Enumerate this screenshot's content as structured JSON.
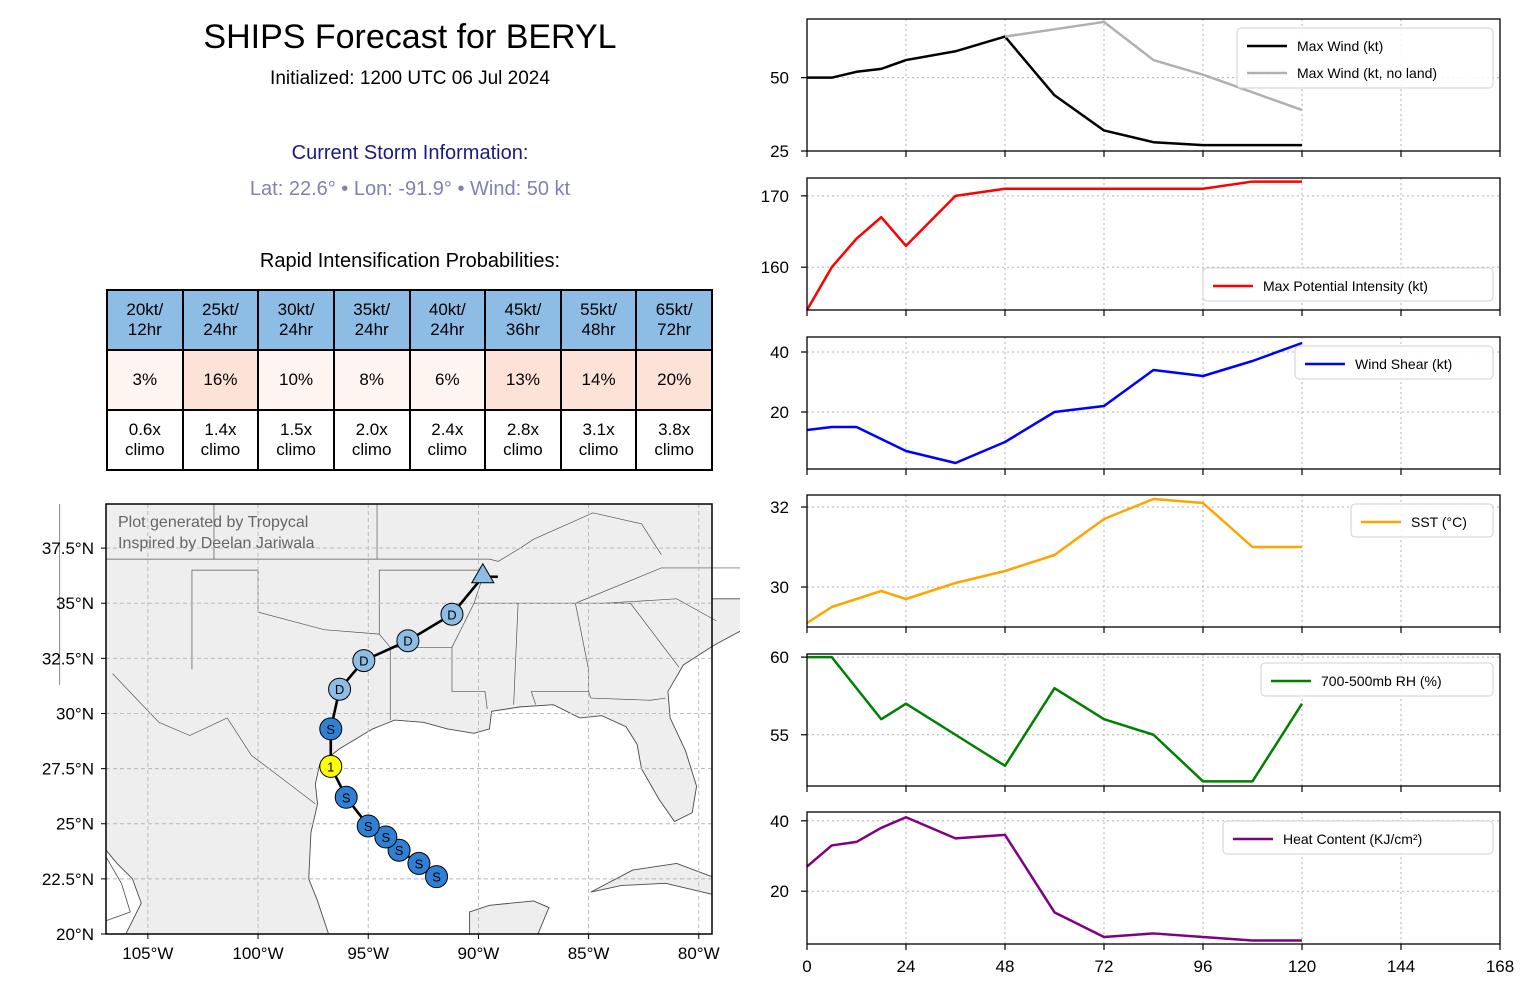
{
  "header": {
    "title": "SHIPS Forecast for BERYL",
    "initialized": "Initialized: 1200 UTC 06 Jul 2024",
    "storm_info_heading": "Current Storm Information:",
    "storm_info_line": "Lat: 22.6°  • Lon: -91.9°  • Wind: 50 kt",
    "ri_heading": "Rapid Intensification Probabilities:"
  },
  "ri_table": {
    "headers": [
      "20kt/\n12hr",
      "25kt/\n24hr",
      "30kt/\n24hr",
      "35kt/\n24hr",
      "40kt/\n24hr",
      "45kt/\n36hr",
      "55kt/\n48hr",
      "65kt/\n72hr"
    ],
    "probabilities": [
      "3%",
      "16%",
      "10%",
      "8%",
      "6%",
      "13%",
      "14%",
      "20%"
    ],
    "climo": [
      "0.6x\nclimo",
      "1.4x\nclimo",
      "1.5x\nclimo",
      "2.0x\nclimo",
      "2.4x\nclimo",
      "2.8x\nclimo",
      "3.1x\nclimo",
      "3.8x\nclimo"
    ],
    "prob_values": [
      3,
      16,
      10,
      8,
      6,
      13,
      14,
      20
    ],
    "colors": {
      "header_bg": "#8dbde4",
      "prob_low": "#fff5f0",
      "prob_high": "#fde2d7"
    }
  },
  "map": {
    "credit": [
      "Plot generated by Tropycal",
      "Inspired by Deelan Jariwala"
    ],
    "lon_ticks": [
      "105°W",
      "100°W",
      "95°W",
      "90°W",
      "85°W",
      "80°W"
    ],
    "lat_ticks": [
      "37.5°N",
      "35°N",
      "32.5°N",
      "30°N",
      "27.5°N",
      "25°N",
      "22.5°N",
      "20°N"
    ],
    "lon_values": [
      -105,
      -100,
      -95,
      -90,
      -85,
      -80
    ],
    "lat_values": [
      37.5,
      35,
      32.5,
      30,
      27.5,
      25,
      22.5,
      20
    ],
    "lon_range": [
      -106.9,
      -79.4
    ],
    "lat_range": [
      20,
      39.5
    ],
    "track": [
      {
        "lat": 22.6,
        "lon": -91.9,
        "label": "S",
        "type": "storm"
      },
      {
        "lat": 23.2,
        "lon": -92.7,
        "label": "S",
        "type": "storm"
      },
      {
        "lat": 23.8,
        "lon": -93.6,
        "label": "S",
        "type": "storm"
      },
      {
        "lat": 24.4,
        "lon": -94.2,
        "label": "S",
        "type": "storm"
      },
      {
        "lat": 24.9,
        "lon": -95.0,
        "label": "S",
        "type": "storm"
      },
      {
        "lat": 26.2,
        "lon": -96.0,
        "label": "S",
        "type": "storm"
      },
      {
        "lat": 27.6,
        "lon": -96.7,
        "label": "1",
        "type": "hurricane"
      },
      {
        "lat": 29.3,
        "lon": -96.7,
        "label": "S",
        "type": "storm"
      },
      {
        "lat": 31.1,
        "lon": -96.3,
        "label": "D",
        "type": "depression"
      },
      {
        "lat": 32.4,
        "lon": -95.2,
        "label": "D",
        "type": "depression"
      },
      {
        "lat": 33.3,
        "lon": -93.2,
        "label": "D",
        "type": "depression"
      },
      {
        "lat": 34.5,
        "lon": -91.2,
        "label": "D",
        "type": "depression"
      },
      {
        "lat": 36.2,
        "lon": -89.8,
        "label": "",
        "type": "remnant"
      }
    ],
    "colors": {
      "storm": "#2f7fd4",
      "hurricane": "#ffff00",
      "depression": "#8dbde4",
      "remnant": "#8dbde4",
      "land": "#eeeeee",
      "ocean": "#ffffff"
    }
  },
  "chart_data": [
    {
      "type": "line",
      "x": [
        0,
        6,
        12,
        18,
        24,
        36,
        48,
        60,
        72,
        84,
        96,
        108,
        120
      ],
      "series": [
        {
          "name": "Max Wind (kt)",
          "color": "#000000",
          "values": [
            50,
            50,
            52,
            53,
            56,
            59,
            64,
            44,
            32,
            28,
            27,
            27,
            27
          ]
        },
        {
          "name": "Max Wind (kt, no land)",
          "color": "#b0b0b0",
          "x": [
            48,
            72,
            84,
            96,
            108,
            120
          ],
          "values": [
            64,
            69,
            56,
            51,
            45,
            39
          ]
        }
      ],
      "ylim": [
        25,
        70
      ],
      "yticks": [
        25,
        50
      ]
    },
    {
      "type": "line",
      "x": [
        0,
        6,
        12,
        18,
        24,
        36,
        48,
        60,
        72,
        84,
        96,
        108,
        120
      ],
      "series": [
        {
          "name": "Max Potential Intensity (kt)",
          "color": "#ff0000",
          "values": [
            154,
            160,
            164,
            167,
            163,
            170,
            171,
            171,
            171,
            171,
            171,
            172,
            172
          ]
        }
      ],
      "ylim": [
        154,
        172.5
      ],
      "yticks": [
        160,
        170
      ]
    },
    {
      "type": "line",
      "x": [
        0,
        6,
        12,
        24,
        36,
        48,
        60,
        72,
        84,
        96,
        108,
        120
      ],
      "series": [
        {
          "name": "Wind Shear (kt)",
          "color": "#0000ff",
          "values": [
            14,
            15,
            15,
            7,
            3,
            10,
            20,
            22,
            34,
            32,
            37,
            43
          ]
        }
      ],
      "ylim": [
        1,
        45
      ],
      "yticks": [
        20,
        40
      ]
    },
    {
      "type": "line",
      "x": [
        0,
        6,
        12,
        18,
        24,
        36,
        48,
        60,
        72,
        84,
        96,
        108,
        120
      ],
      "series": [
        {
          "name": "SST (°C)",
          "color": "#ffa500",
          "values": [
            29.1,
            29.5,
            29.7,
            29.9,
            29.7,
            30.1,
            30.4,
            30.8,
            31.7,
            32.2,
            32.1,
            31.0,
            31.0
          ]
        }
      ],
      "ylim": [
        29.0,
        32.3
      ],
      "yticks": [
        30,
        32
      ]
    },
    {
      "type": "line",
      "x": [
        0,
        6,
        18,
        24,
        36,
        48,
        60,
        72,
        84,
        96,
        108,
        120
      ],
      "series": [
        {
          "name": "700-500mb RH (%)",
          "color": "#008000",
          "values": [
            60,
            60,
            56,
            57,
            55,
            53,
            58,
            56,
            55,
            52,
            52,
            57
          ]
        }
      ],
      "ylim": [
        51.7,
        60.2
      ],
      "yticks": [
        55,
        60
      ]
    },
    {
      "type": "line",
      "x": [
        0,
        6,
        12,
        18,
        24,
        36,
        48,
        60,
        72,
        84,
        96,
        108,
        120
      ],
      "series": [
        {
          "name": "Heat Content (KJ/cm²)",
          "color": "#800080",
          "values": [
            27,
            33,
            34,
            38,
            41,
            35,
            36,
            14,
            7,
            8,
            7,
            6,
            6
          ]
        }
      ],
      "ylim": [
        5,
        42.5
      ],
      "yticks": [
        20,
        40
      ]
    }
  ],
  "x_axis": {
    "ticks": [
      0,
      24,
      48,
      72,
      96,
      120,
      144,
      168
    ],
    "range": [
      0,
      168
    ]
  }
}
